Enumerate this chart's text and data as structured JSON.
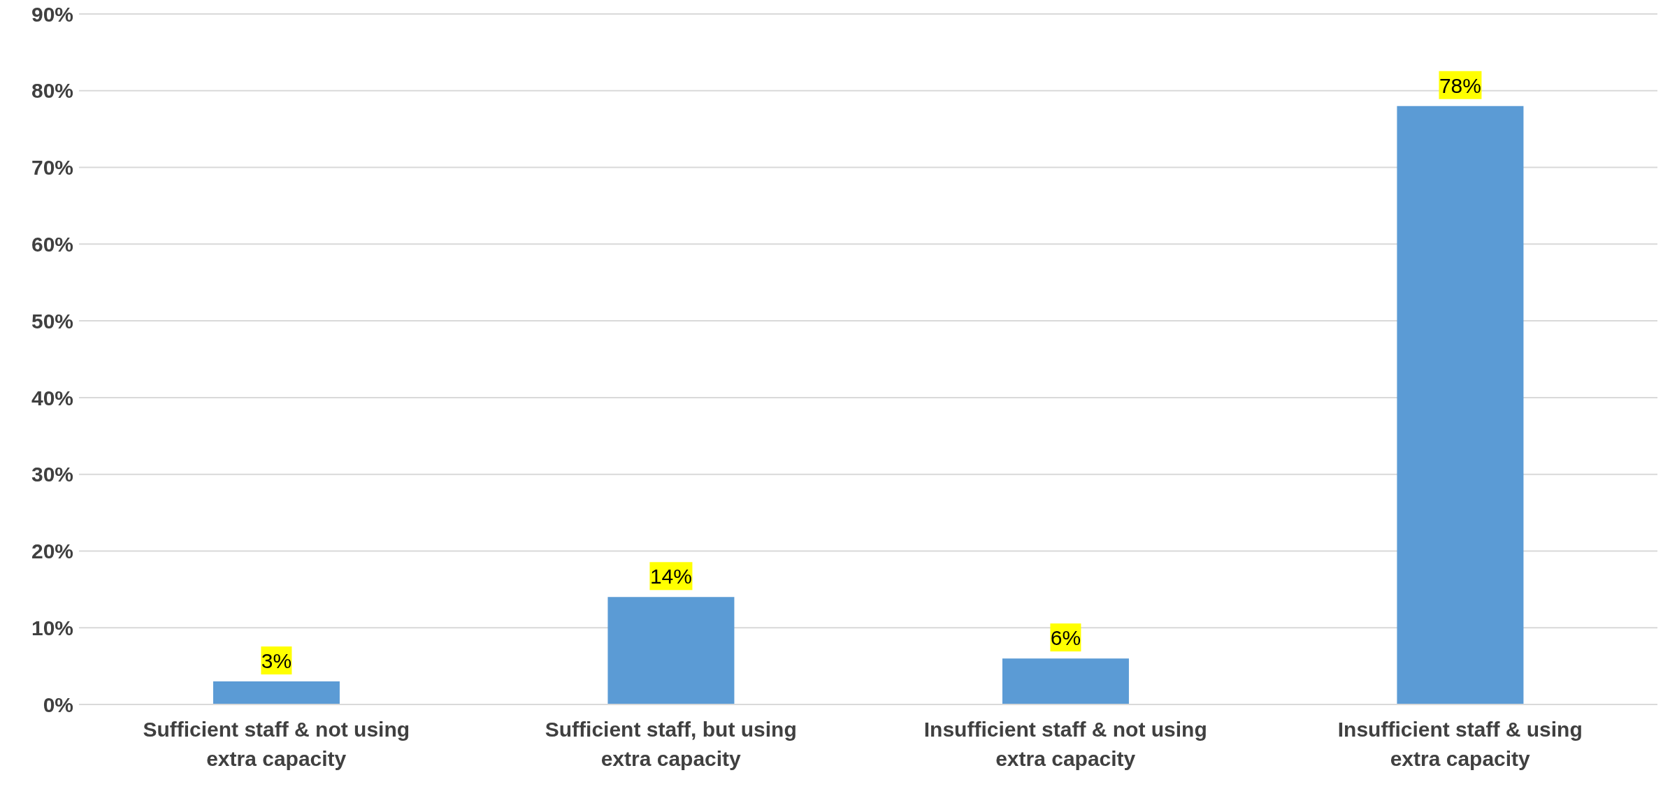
{
  "chart_data": {
    "type": "bar",
    "categories": [
      "Sufficient staff & not using extra capacity",
      "Sufficient staff, but using extra capacity",
      "Insufficient staff & not using extra capacity",
      "Insufficient staff & using extra capacity"
    ],
    "values": [
      3,
      14,
      6,
      78
    ],
    "color": "#5b9bd5",
    "value_labels": [
      "3%",
      "14%",
      "6%",
      "78%"
    ],
    "ylim": [
      0,
      90
    ],
    "yticks": [
      {
        "value": 0,
        "label": "0%"
      },
      {
        "value": 10,
        "label": "10%"
      },
      {
        "value": 20,
        "label": "20%"
      },
      {
        "value": 30,
        "label": "30%"
      },
      {
        "value": 40,
        "label": "40%"
      },
      {
        "value": 50,
        "label": "50%"
      },
      {
        "value": 60,
        "label": "60%"
      },
      {
        "value": 70,
        "label": "70%"
      },
      {
        "value": 80,
        "label": "80%"
      },
      {
        "value": 90,
        "label": "90%"
      }
    ],
    "grid": "y"
  }
}
